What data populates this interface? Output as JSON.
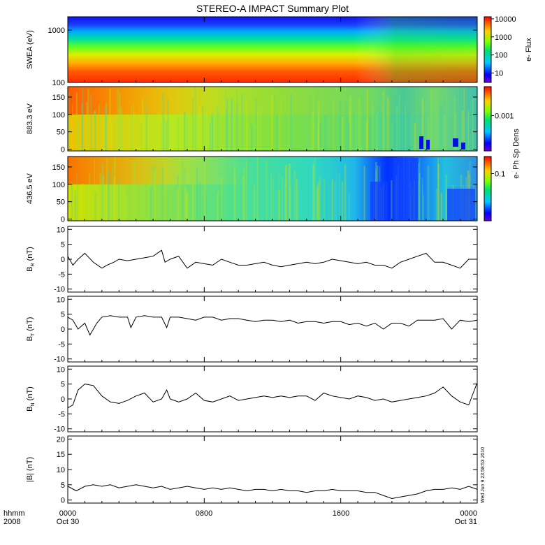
{
  "title": "STEREO-A IMPACT Summary Plot",
  "timestamp_label": "Wed Jun  9 23:58:53 2010",
  "x_axis": {
    "row1_labels": [
      "hhmm",
      "0000",
      "0800",
      "1600",
      "0000"
    ],
    "row2_labels": [
      "2008",
      "Oct 30",
      "Oct 31"
    ],
    "range_hours": [
      0,
      24
    ],
    "tick_hours": [
      0,
      8,
      16,
      24
    ]
  },
  "chart_data": [
    {
      "type": "heatmap",
      "ylabel": "SWEA (eV)",
      "y_scale": "log",
      "ylim": [
        100,
        1800
      ],
      "y_ticks": [
        100,
        1000
      ],
      "y_tick_labels": [
        "100",
        "1000"
      ],
      "colorbar": {
        "label": "e- Flux",
        "scale": "log",
        "range": [
          3,
          13000
        ],
        "ticks": [
          10,
          100,
          1000,
          10000
        ],
        "tick_labels": [
          "10",
          "100",
          "1000",
          "10000"
        ]
      }
    },
    {
      "type": "heatmap",
      "ylabel": "883.3 eV",
      "ylim": [
        -5,
        180
      ],
      "y_ticks": [
        0,
        50,
        100,
        150
      ],
      "y_tick_labels": [
        "0",
        "50",
        "100",
        "150"
      ],
      "colorbar": {
        "label": "e- Ph Sp Dens",
        "scale": "log",
        "range": [
          8e-05,
          0.008
        ],
        "ticks": [
          0.001
        ],
        "tick_labels": [
          "0.001"
        ]
      }
    },
    {
      "type": "heatmap",
      "ylabel": "436.5 eV",
      "ylim": [
        -5,
        180
      ],
      "y_ticks": [
        0,
        50,
        100,
        150
      ],
      "y_tick_labels": [
        "0",
        "50",
        "100",
        "150"
      ],
      "colorbar": {
        "label": "e- Ph Sp Dens",
        "scale": "log",
        "range": [
          0.008,
          0.25
        ],
        "ticks": [
          0.1
        ],
        "tick_labels": [
          "0.1"
        ]
      }
    },
    {
      "type": "line",
      "ylabel_main": "B",
      "ylabel_sub": "R",
      "ylabel_unit": " (nT)",
      "ylim": [
        -11,
        11
      ],
      "y_ticks": [
        -10,
        -5,
        0,
        5,
        10
      ],
      "y_tick_labels": [
        "-10",
        "-5",
        "0",
        "5",
        "10"
      ],
      "x": [
        0,
        0.3,
        0.6,
        1,
        1.5,
        2,
        2.3,
        2.7,
        3,
        3.5,
        4,
        4.5,
        5,
        5.5,
        5.7,
        6,
        6.5,
        7,
        7.5,
        8,
        8.5,
        9,
        9.5,
        10,
        10.5,
        11,
        11.5,
        12,
        12.5,
        13,
        13.5,
        14,
        14.5,
        15,
        15.5,
        16,
        16.5,
        17,
        17.5,
        18,
        18.5,
        19,
        19.5,
        20,
        20.5,
        21,
        21.5,
        22,
        22.5,
        23,
        23.5,
        24
      ],
      "y": [
        1,
        -2,
        0,
        2,
        -1,
        -3,
        -2,
        -1,
        0,
        -0.5,
        0,
        0.5,
        1,
        3,
        -1,
        0,
        1,
        -3,
        -1,
        -1.5,
        -2,
        0,
        -1,
        -2,
        -2,
        -1.5,
        -1,
        -2,
        -2.5,
        -2,
        -1.5,
        -1,
        -1.5,
        -1,
        0,
        -0.5,
        -1,
        -1.5,
        -1,
        -2,
        -2,
        -3,
        -1,
        0,
        1,
        2,
        -1,
        -1,
        -2,
        -3,
        0,
        0
      ]
    },
    {
      "type": "line",
      "ylabel_main": "B",
      "ylabel_sub": "T",
      "ylabel_unit": " (nT)",
      "ylim": [
        -11,
        11
      ],
      "y_ticks": [
        -10,
        -5,
        0,
        5,
        10
      ],
      "y_tick_labels": [
        "-10",
        "-5",
        "0",
        "5",
        "10"
      ],
      "x": [
        0,
        0.3,
        0.6,
        1,
        1.3,
        1.7,
        2,
        2.5,
        3,
        3.5,
        3.7,
        4,
        4.5,
        5,
        5.5,
        5.8,
        6,
        6.5,
        7,
        7.5,
        8,
        8.5,
        9,
        9.5,
        10,
        10.5,
        11,
        11.5,
        12,
        12.5,
        13,
        13.5,
        14,
        14.5,
        15,
        15.5,
        16,
        16.5,
        17,
        17.5,
        18,
        18.5,
        19,
        19.5,
        20,
        20.5,
        21,
        21.5,
        22,
        22.5,
        23,
        23.5,
        24
      ],
      "y": [
        4,
        3,
        0,
        2,
        -2,
        2,
        4,
        4.5,
        4,
        4,
        0.5,
        4,
        4.5,
        4,
        4,
        0.5,
        4,
        4,
        3.5,
        3,
        4,
        4,
        3,
        3.5,
        3.5,
        3,
        2.5,
        3,
        3,
        2.5,
        3,
        2,
        2.5,
        2.5,
        2,
        2.5,
        2.5,
        1.5,
        2,
        1,
        2,
        0,
        2,
        2,
        1,
        3,
        3,
        3,
        3.5,
        0,
        3,
        2.5,
        3
      ]
    },
    {
      "type": "line",
      "ylabel_main": "B",
      "ylabel_sub": "N",
      "ylabel_unit": " (nT)",
      "ylim": [
        -11,
        11
      ],
      "y_ticks": [
        -10,
        -5,
        0,
        5,
        10
      ],
      "y_tick_labels": [
        "-10",
        "-5",
        "0",
        "5",
        "10"
      ],
      "x": [
        0,
        0.3,
        0.6,
        1,
        1.5,
        2,
        2.5,
        3,
        3.5,
        4,
        4.5,
        5,
        5.5,
        5.8,
        6,
        6.5,
        7,
        7.5,
        8,
        8.5,
        9,
        9.5,
        10,
        10.5,
        11,
        11.5,
        12,
        12.5,
        13,
        13.5,
        14,
        14.5,
        15,
        15.5,
        16,
        16.5,
        17,
        17.5,
        18,
        18.5,
        19,
        19.5,
        20,
        20.5,
        21,
        21.5,
        22,
        22.5,
        23,
        23.5,
        24
      ],
      "y": [
        -3,
        -2,
        3,
        5,
        4.5,
        1,
        -1,
        -1.5,
        -0.5,
        1,
        2,
        -1,
        0,
        3,
        0,
        -1,
        0,
        2,
        -0.5,
        -1,
        0,
        1,
        -0.5,
        0,
        0.5,
        1,
        0.5,
        1,
        0.5,
        1,
        1,
        -0.5,
        2,
        1,
        0.5,
        0,
        1,
        0.5,
        -0.5,
        0,
        -1,
        -0.5,
        0,
        0.5,
        1,
        2,
        4,
        1,
        -1,
        -2,
        5.5
      ]
    },
    {
      "type": "line",
      "ylabel": "|B| (nT)",
      "ylim": [
        -1,
        21
      ],
      "y_ticks": [
        0,
        5,
        10,
        15,
        20
      ],
      "y_tick_labels": [
        "0",
        "5",
        "10",
        "15",
        "20"
      ],
      "x": [
        0,
        0.5,
        1,
        1.5,
        2,
        2.5,
        3,
        3.5,
        4,
        4.5,
        5,
        5.5,
        6,
        6.5,
        7,
        7.5,
        8,
        8.5,
        9,
        9.5,
        10,
        10.5,
        11,
        11.5,
        12,
        12.5,
        13,
        13.5,
        14,
        14.5,
        15,
        15.5,
        16,
        16.5,
        17,
        17.5,
        18,
        18.5,
        19,
        19.5,
        20,
        20.5,
        21,
        21.5,
        22,
        22.5,
        23,
        23.5,
        24
      ],
      "y": [
        4.5,
        3,
        4.5,
        5,
        4.5,
        5,
        4,
        4.5,
        5,
        4.5,
        4,
        4.5,
        3.5,
        4,
        4.5,
        4,
        3.5,
        4,
        3.5,
        4,
        3.5,
        3,
        3.5,
        3.5,
        3,
        3.5,
        3,
        3,
        2.5,
        3,
        3,
        3.5,
        3,
        3,
        3,
        2.5,
        2.5,
        1.5,
        0.5,
        1,
        1.5,
        2,
        3,
        3.5,
        3.5,
        4,
        3.5,
        4.5,
        3.5
      ]
    }
  ]
}
